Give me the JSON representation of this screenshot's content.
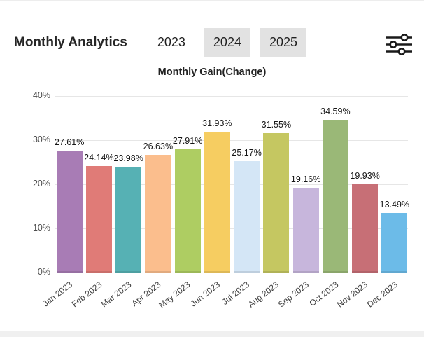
{
  "header": {
    "title": "Monthly Analytics",
    "tabs": [
      {
        "label": "2023",
        "active": true
      },
      {
        "label": "2024",
        "active": false
      },
      {
        "label": "2025",
        "active": false
      }
    ],
    "filter_icon": "sliders-icon"
  },
  "chart_data": {
    "type": "bar",
    "title": "Monthly Gain(Change)",
    "categories": [
      "Jan 2023",
      "Feb 2023",
      "Mar 2023",
      "Apr 2023",
      "May 2023",
      "Jun 2023",
      "Jul 2023",
      "Aug 2023",
      "Sep 2023",
      "Oct 2023",
      "Nov 2023",
      "Dec 2023"
    ],
    "values": [
      27.61,
      24.14,
      23.98,
      26.63,
      27.91,
      31.93,
      25.17,
      31.55,
      19.16,
      34.59,
      19.93,
      13.49
    ],
    "labels": [
      "27.61%",
      "24.14%",
      "23.98%",
      "26.63%",
      "27.91%",
      "31.93%",
      "25.17%",
      "31.55%",
      "19.16%",
      "34.59%",
      "19.93%",
      "13.49%"
    ],
    "bar_colors": [
      "#a87cb5",
      "#e07b77",
      "#56b1b4",
      "#fbbe8d",
      "#aecd62",
      "#f6cd61",
      "#d4e6f6",
      "#c5c761",
      "#c7b6dc",
      "#9ab877",
      "#c76f76",
      "#6cbbe8"
    ],
    "xlabel": "",
    "ylabel": "",
    "ylim": [
      0,
      40
    ],
    "yticks": [
      {
        "value": 0,
        "label": "0%"
      },
      {
        "value": 10,
        "label": "10%"
      },
      {
        "value": 20,
        "label": "20%"
      },
      {
        "value": 30,
        "label": "30%"
      },
      {
        "value": 40,
        "label": "40%"
      }
    ],
    "grid": true,
    "legend": "none"
  }
}
